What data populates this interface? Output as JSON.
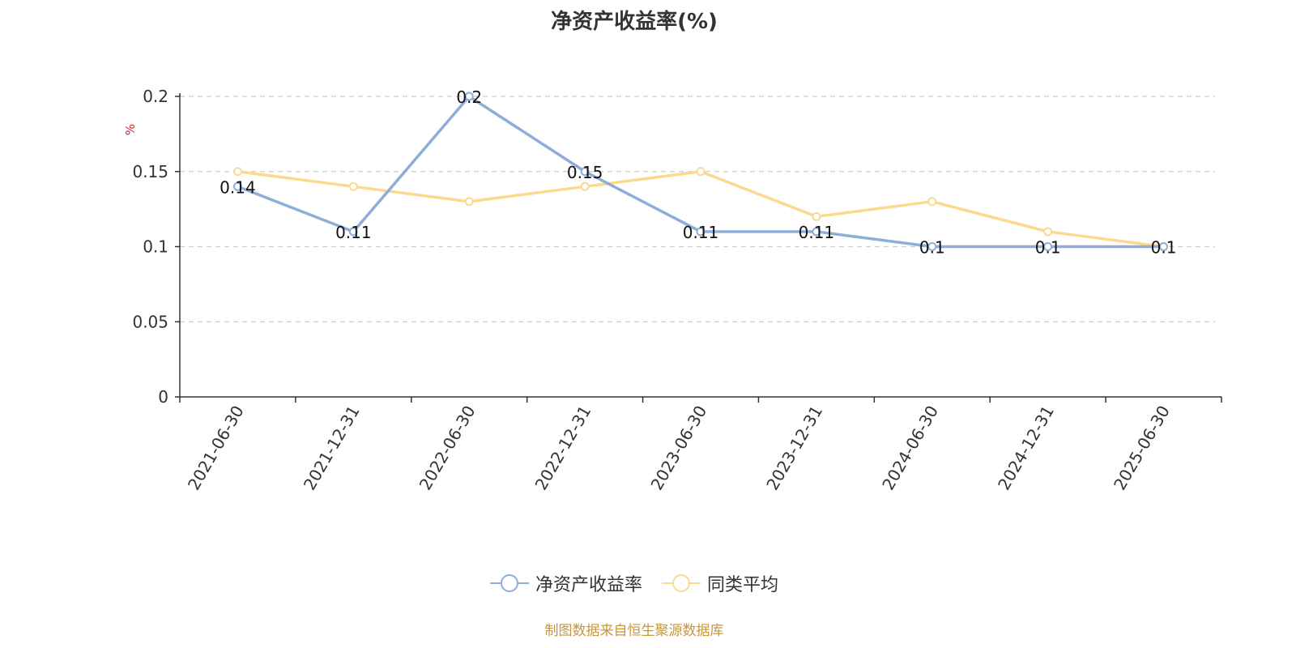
{
  "chart_data": {
    "type": "line",
    "title": "净资产收益率(%)",
    "ylabel": "%",
    "xlabel": "",
    "categories": [
      "2021-06-30",
      "2021-12-31",
      "2022-06-30",
      "2022-12-31",
      "2023-06-30",
      "2023-12-31",
      "2024-06-30",
      "2024-12-31",
      "2025-06-30"
    ],
    "ylim": [
      0,
      0.2
    ],
    "yticks": [
      "0",
      "0.05",
      "0.1",
      "0.15",
      "0.2"
    ],
    "grid": true,
    "legend_position": "bottom",
    "series": [
      {
        "name": "净资产收益率",
        "color": "#8eadd8",
        "values": [
          0.14,
          0.11,
          0.2,
          0.15,
          0.11,
          0.11,
          0.1,
          0.1,
          0.1
        ],
        "labels": [
          "0.14",
          "0.11",
          "0.2",
          "0.15",
          "0.11",
          "0.11",
          "0.1",
          "0.1",
          "0.1"
        ]
      },
      {
        "name": "同类平均",
        "color": "#fbd98f",
        "values": [
          0.15,
          0.14,
          0.13,
          0.14,
          0.15,
          0.12,
          0.13,
          0.11,
          0.1
        ]
      }
    ]
  },
  "source_text": "制图数据来自恒生聚源数据库",
  "colors": {
    "axis": "#333333",
    "grid": "#cccccc",
    "ylabel": "#e02020",
    "source": "#c8963c"
  }
}
